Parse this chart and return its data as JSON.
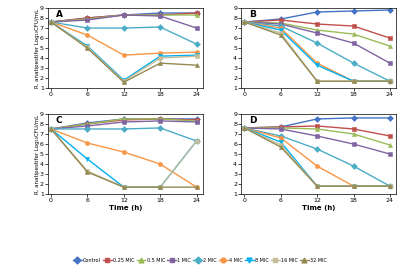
{
  "time": [
    0,
    6,
    12,
    18,
    24
  ],
  "panels": {
    "A": {
      "control": [
        7.6,
        8.0,
        8.3,
        8.5,
        8.5
      ],
      "mic025": [
        7.6,
        8.0,
        8.3,
        8.3,
        8.5
      ],
      "mic05": [
        7.6,
        7.9,
        8.3,
        8.3,
        8.3
      ],
      "mic1": [
        7.6,
        7.8,
        8.3,
        8.2,
        7.0
      ],
      "mic2": [
        7.6,
        7.0,
        7.0,
        7.1,
        5.4
      ],
      "mic4": [
        7.6,
        6.3,
        4.3,
        4.5,
        4.6
      ],
      "mic8": [
        7.6,
        5.2,
        1.8,
        4.2,
        4.3
      ],
      "mic16": [
        7.6,
        5.1,
        1.7,
        4.0,
        4.2
      ],
      "mic32": [
        7.6,
        5.0,
        1.6,
        3.5,
        3.3
      ]
    },
    "B": {
      "control": [
        7.6,
        7.9,
        8.6,
        8.7,
        8.8
      ],
      "mic025": [
        7.6,
        7.8,
        7.4,
        7.2,
        6.0
      ],
      "mic05": [
        7.6,
        7.5,
        6.8,
        6.4,
        5.2
      ],
      "mic1": [
        7.6,
        7.4,
        6.5,
        5.5,
        3.5
      ],
      "mic2": [
        7.6,
        7.2,
        5.5,
        3.5,
        1.7
      ],
      "mic4": [
        7.6,
        7.0,
        3.5,
        1.7,
        1.7
      ],
      "mic8": [
        7.6,
        6.8,
        3.3,
        1.7,
        1.7
      ],
      "mic16": [
        7.6,
        6.5,
        1.7,
        1.7,
        1.7
      ],
      "mic32": [
        7.6,
        6.3,
        1.7,
        1.7,
        1.7
      ]
    },
    "C": {
      "control": [
        7.5,
        8.1,
        8.5,
        8.5,
        8.5
      ],
      "mic025": [
        7.5,
        8.0,
        8.4,
        8.5,
        8.4
      ],
      "mic05": [
        7.5,
        8.0,
        8.5,
        8.5,
        8.3
      ],
      "mic1": [
        7.5,
        7.8,
        8.2,
        8.3,
        8.2
      ],
      "mic2": [
        7.5,
        7.5,
        7.5,
        7.6,
        6.3
      ],
      "mic4": [
        7.5,
        6.1,
        5.2,
        4.0,
        1.7
      ],
      "mic8": [
        7.5,
        4.5,
        1.7,
        1.7,
        6.3
      ],
      "mic16": [
        7.5,
        3.3,
        1.7,
        1.7,
        6.3
      ],
      "mic32": [
        7.5,
        3.2,
        1.7,
        1.7,
        1.7
      ]
    },
    "D": {
      "control": [
        7.6,
        7.7,
        8.5,
        8.6,
        8.6
      ],
      "mic025": [
        7.6,
        7.7,
        7.8,
        7.5,
        6.8
      ],
      "mic05": [
        7.6,
        7.6,
        7.5,
        7.0,
        5.9
      ],
      "mic1": [
        7.6,
        7.5,
        6.8,
        6.0,
        5.0
      ],
      "mic2": [
        7.6,
        6.8,
        5.5,
        3.8,
        1.8
      ],
      "mic4": [
        7.6,
        6.6,
        3.8,
        1.8,
        1.8
      ],
      "mic8": [
        7.6,
        6.2,
        1.8,
        1.8,
        1.8
      ],
      "mic16": [
        7.6,
        5.9,
        1.8,
        1.8,
        1.8
      ],
      "mic32": [
        7.6,
        5.7,
        1.8,
        1.8,
        1.8
      ]
    }
  },
  "colors": {
    "control": "#4472c4",
    "mic025": "#c0504d",
    "mic05": "#9bbb59",
    "mic1": "#8064a2",
    "mic2": "#4bacc6",
    "mic4": "#f79646",
    "mic8": "#00b0f0",
    "mic16": "#c4bd97",
    "mic32": "#948a54"
  },
  "markers": {
    "control": "D",
    "mic025": "s",
    "mic05": "^",
    "mic1": "s",
    "mic2": "D",
    "mic4": "o",
    "mic8": "v",
    "mic16": "s",
    "mic32": "^"
  },
  "legend_labels": {
    "control": "Control",
    "mic025": "0.25 MIC",
    "mic05": "0.5 MIC",
    "mic1": "1 MIC",
    "mic2": "2 MIC",
    "mic4": "4 MIC",
    "mic8": "8 MIC",
    "mic16": "16 MIC",
    "mic32": "32 MIC"
  },
  "ylim": [
    1,
    9
  ],
  "yticks": [
    1,
    2,
    3,
    4,
    5,
    6,
    7,
    8,
    9
  ],
  "xticks": [
    0,
    6,
    12,
    18,
    24
  ],
  "ylabel": "R. anatipestifer Log₁₀CFU/mL",
  "xlabel": "Time (h)",
  "linewidth": 1.0,
  "markersize": 3.0
}
